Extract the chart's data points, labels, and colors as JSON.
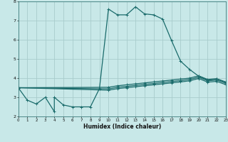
{
  "xlabel": "Humidex (Indice chaleur)",
  "bg_color": "#c8e8e8",
  "grid_color": "#a8cccc",
  "line_color": "#1a6b6b",
  "xlim": [
    0,
    23
  ],
  "ylim": [
    2,
    8
  ],
  "xticks": [
    0,
    1,
    2,
    3,
    4,
    5,
    6,
    7,
    8,
    9,
    10,
    11,
    12,
    13,
    14,
    15,
    16,
    17,
    18,
    19,
    20,
    21,
    22,
    23
  ],
  "yticks": [
    2,
    3,
    4,
    5,
    6,
    7,
    8
  ],
  "series": [
    {
      "x": [
        0,
        1,
        2,
        3,
        4,
        4,
        5,
        6,
        7,
        8,
        9,
        10,
        11,
        12,
        13,
        14,
        15,
        16,
        17,
        18,
        19,
        20,
        21,
        22,
        23
      ],
      "y": [
        3.5,
        2.85,
        2.65,
        3.0,
        2.25,
        3.0,
        2.6,
        2.5,
        2.5,
        2.5,
        3.45,
        7.6,
        7.3,
        7.3,
        7.72,
        7.35,
        7.3,
        7.08,
        5.95,
        4.88,
        4.45,
        4.1,
        3.9,
        3.95,
        3.78
      ]
    },
    {
      "x": [
        0,
        10,
        11,
        12,
        13,
        14,
        15,
        16,
        17,
        18,
        19,
        20,
        21,
        22,
        23
      ],
      "y": [
        3.5,
        3.52,
        3.6,
        3.65,
        3.7,
        3.75,
        3.8,
        3.85,
        3.9,
        3.95,
        4.0,
        4.12,
        3.93,
        3.97,
        3.8
      ]
    },
    {
      "x": [
        0,
        10,
        11,
        12,
        13,
        14,
        15,
        16,
        17,
        18,
        19,
        20,
        21,
        22,
        23
      ],
      "y": [
        3.5,
        3.44,
        3.52,
        3.57,
        3.62,
        3.67,
        3.72,
        3.77,
        3.82,
        3.87,
        3.93,
        4.05,
        3.86,
        3.9,
        3.73
      ]
    },
    {
      "x": [
        0,
        10,
        11,
        12,
        13,
        14,
        15,
        16,
        17,
        18,
        19,
        20,
        21,
        22,
        23
      ],
      "y": [
        3.5,
        3.37,
        3.45,
        3.5,
        3.55,
        3.6,
        3.65,
        3.7,
        3.75,
        3.8,
        3.86,
        3.98,
        3.79,
        3.83,
        3.66
      ]
    }
  ]
}
